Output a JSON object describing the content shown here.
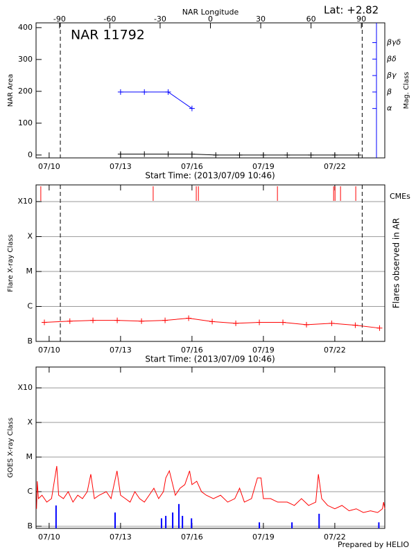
{
  "chart_data": [
    {
      "type": "line",
      "title": "NAR 11792",
      "annotation": "Lat:  +2.82",
      "x2label": "NAR Longitude",
      "xlabel": "Start Time: (2013/07/09 10:46)",
      "ylabel": "NAR Area",
      "y2label": "Mag. Class",
      "y2color": "#0000ff",
      "xlim": [
        9.45,
        24.1
      ],
      "xticks": [
        {
          "value": 10,
          "label": "07/10"
        },
        {
          "value": 13,
          "label": "07/13"
        },
        {
          "value": 16,
          "label": "07/16"
        },
        {
          "value": 19,
          "label": "07/19"
        },
        {
          "value": 22,
          "label": "07/22"
        }
      ],
      "x2lim": [
        -104,
        104
      ],
      "x2ticks": [
        -90,
        -60,
        -30,
        0,
        30,
        60,
        90
      ],
      "ylim": [
        -9,
        415
      ],
      "yticks": [
        0,
        100,
        200,
        300,
        400
      ],
      "y2lim": [
        -2,
        6.2
      ],
      "y2ticks": [
        {
          "value": 1,
          "label": "α"
        },
        {
          "value": 2,
          "label": "β"
        },
        {
          "value": 3,
          "label": "βγ"
        },
        {
          "value": 4,
          "label": "βδ"
        },
        {
          "value": 5,
          "label": "βγδ"
        }
      ],
      "limb_x": [
        10.47,
        23.15
      ],
      "series": [
        {
          "color": "#000000",
          "marker": "+",
          "x": [
            13,
            14,
            15,
            16,
            17,
            18,
            19,
            20,
            21,
            22,
            23
          ],
          "values": [
            3,
            3,
            3,
            3,
            0,
            0,
            0,
            0,
            0,
            0,
            0
          ]
        },
        {
          "color": "#0000ff",
          "marker": "+",
          "axis": "y2",
          "x": [
            13,
            14,
            15,
            16
          ],
          "values": [
            2,
            2,
            2,
            1
          ]
        }
      ]
    },
    {
      "type": "line",
      "xlabel": "Start Time: (2013/07/09 10:46)",
      "ylabel": "Flare X-ray Class",
      "y2label": "Flares observed in AR",
      "log": true,
      "grid": true,
      "xlim": [
        9.45,
        24.1
      ],
      "xticks": [
        {
          "value": 10,
          "label": "07/10"
        },
        {
          "value": 13,
          "label": "07/13"
        },
        {
          "value": 16,
          "label": "07/16"
        },
        {
          "value": 19,
          "label": "07/19"
        },
        {
          "value": 22,
          "label": "07/22"
        }
      ],
      "ylim": [
        1e-07,
        0.003
      ],
      "yticks": [
        {
          "value": 1e-07,
          "label": "B"
        },
        {
          "value": 1e-06,
          "label": "C"
        },
        {
          "value": 1e-05,
          "label": "M"
        },
        {
          "value": 0.0001,
          "label": "X"
        },
        {
          "value": 0.001,
          "label": "X10"
        }
      ],
      "limb_x": [
        10.47,
        23.15
      ],
      "events": {
        "name": "CMEs",
        "color": "#ff0000",
        "x": [
          9.65,
          14.37,
          16.18,
          16.27,
          19.59,
          21.95,
          22.01,
          22.24,
          22.88
        ]
      },
      "series": [
        {
          "color": "#ff0000",
          "marker": "+",
          "x": [
            9.8,
            10.87,
            11.84,
            12.86,
            13.88,
            14.87,
            15.86,
            16.85,
            17.84,
            18.83,
            19.82,
            20.81,
            21.87,
            22.86,
            23.88
          ],
          "values": [
            3.5e-07,
            3.8e-07,
            4e-07,
            4e-07,
            3.8e-07,
            4e-07,
            4.6e-07,
            3.7e-07,
            3.3e-07,
            3.5e-07,
            3.5e-07,
            3e-07,
            3.3e-07,
            2.9e-07,
            2.4e-07
          ]
        }
      ]
    },
    {
      "type": "line",
      "ylabel": "GOES X-ray Class",
      "log": true,
      "grid": true,
      "xlim": [
        9.45,
        24.1
      ],
      "xticks": [
        {
          "value": 10,
          "label": "07/10"
        },
        {
          "value": 13,
          "label": "07/13"
        },
        {
          "value": 16,
          "label": "07/16"
        },
        {
          "value": 19,
          "label": "07/19"
        },
        {
          "value": 22,
          "label": "07/22"
        }
      ],
      "ylim": [
        8.7e-08,
        0.004
      ],
      "yticks": [
        {
          "value": 1e-07,
          "label": "B"
        },
        {
          "value": 1e-06,
          "label": "C"
        },
        {
          "value": 1e-05,
          "label": "M"
        },
        {
          "value": 0.0001,
          "label": "X"
        },
        {
          "value": 0.001,
          "label": "X10"
        }
      ],
      "series": [
        {
          "color": "#ff0000",
          "x": [
            9.47,
            9.5,
            9.55,
            9.7,
            9.9,
            10.1,
            10.32,
            10.4,
            10.6,
            10.8,
            11.0,
            11.2,
            11.4,
            11.6,
            11.75,
            11.9,
            12.1,
            12.4,
            12.6,
            12.85,
            13.0,
            13.2,
            13.4,
            13.6,
            13.8,
            14.0,
            14.2,
            14.4,
            14.6,
            14.8,
            14.9,
            15.05,
            15.3,
            15.5,
            15.7,
            15.9,
            16.0,
            16.2,
            16.4,
            16.6,
            16.9,
            17.2,
            17.5,
            17.8,
            18.0,
            18.2,
            18.5,
            18.75,
            18.9,
            19.0,
            19.3,
            19.6,
            20.0,
            20.3,
            20.6,
            20.9,
            21.2,
            21.31,
            21.45,
            21.7,
            22.0,
            22.3,
            22.6,
            22.9,
            23.2,
            23.5,
            23.8,
            24.0,
            24.05,
            24.1
          ],
          "values": [
            3.2e-07,
            2e-06,
            6.3e-07,
            7.9e-07,
            5e-07,
            6.3e-07,
            5.5e-06,
            7.9e-07,
            6.3e-07,
            1e-06,
            5e-07,
            7.9e-07,
            6.3e-07,
            1e-06,
            3.2e-06,
            6.3e-07,
            7.9e-07,
            1e-06,
            6.3e-07,
            4e-06,
            7.9e-07,
            6.3e-07,
            5e-07,
            1e-06,
            6.3e-07,
            5e-07,
            7.9e-07,
            1.26e-06,
            6.3e-07,
            1e-06,
            2.5e-06,
            4e-06,
            7.9e-07,
            1.26e-06,
            1.6e-06,
            4e-06,
            1.6e-06,
            2e-06,
            1e-06,
            7.9e-07,
            6.3e-07,
            7.9e-07,
            5e-07,
            6.3e-07,
            1.26e-06,
            5e-07,
            6.3e-07,
            2.5e-06,
            2.5e-06,
            6.3e-07,
            6.3e-07,
            5e-07,
            5e-07,
            4e-07,
            6.3e-07,
            4e-07,
            5e-07,
            3.2e-06,
            6.3e-07,
            4e-07,
            3.2e-07,
            4e-07,
            2.8e-07,
            3.2e-07,
            2.5e-07,
            2.8e-07,
            2.5e-07,
            3.2e-07,
            5e-07,
            3.2e-07
          ]
        },
        {
          "type": "bar",
          "color": "#0000ff",
          "x": [
            10.29,
            12.77,
            14.72,
            14.9,
            15.19,
            15.45,
            15.6,
            15.98,
            18.83,
            20.2,
            21.34,
            23.85
          ],
          "values": [
            4e-07,
            2.5e-07,
            1.7e-07,
            2e-07,
            2.5e-07,
            4.4e-07,
            2e-07,
            1.7e-07,
            1.3e-07,
            1.3e-07,
            2.3e-07,
            1.3e-07
          ]
        }
      ]
    }
  ],
  "footer": "Prepared by HELIO"
}
